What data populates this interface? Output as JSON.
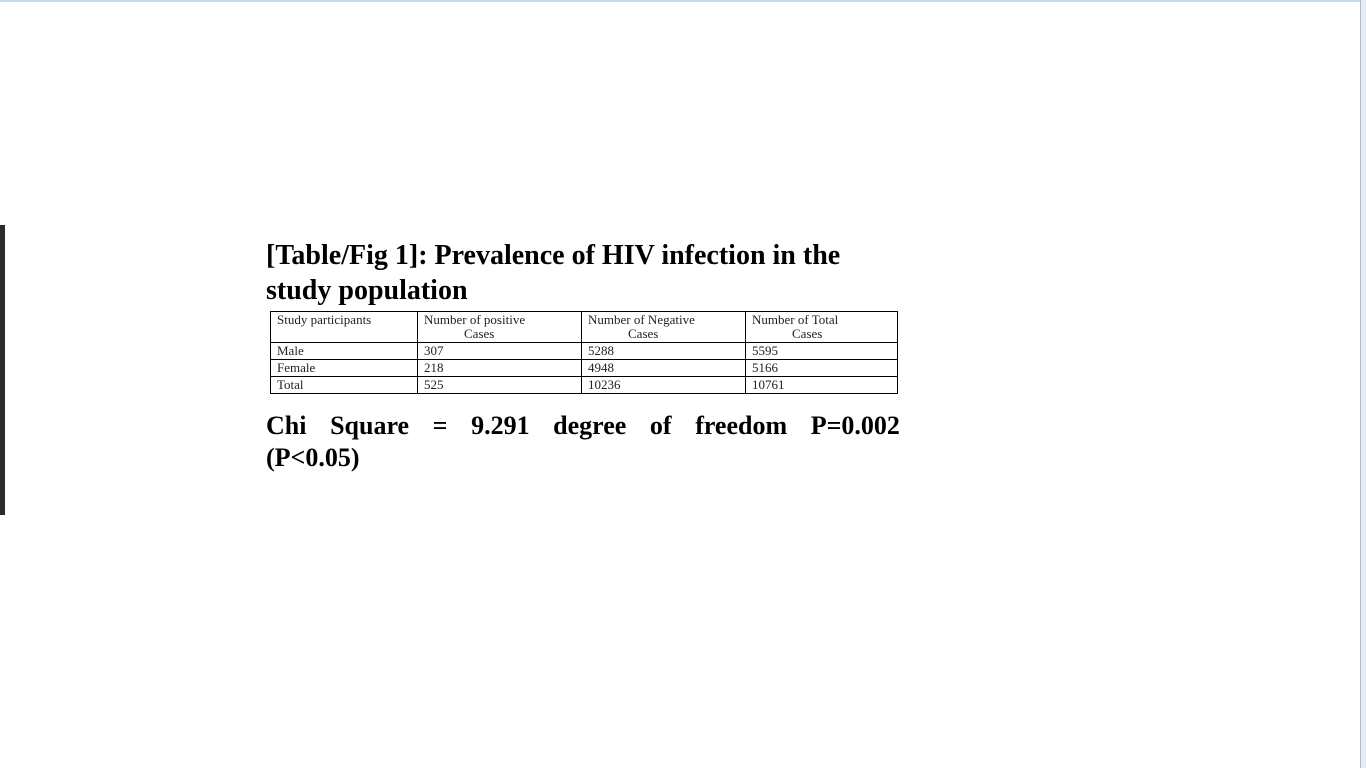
{
  "caption": "[Table/Fig 1]: Prevalence of HIV infection in the study population",
  "table": {
    "headers": [
      [
        "Study participants"
      ],
      [
        "Number of positive",
        "Cases"
      ],
      [
        "Number of Negative",
        "Cases"
      ],
      [
        "Number of Total",
        "Cases"
      ]
    ],
    "rows": [
      [
        "Male",
        "307",
        "5288",
        "5595"
      ],
      [
        "Female",
        "218",
        "4948",
        "5166"
      ],
      [
        "Total",
        "525",
        "10236",
        "10761"
      ]
    ]
  },
  "statistic": {
    "line1": [
      "Chi",
      "Square",
      "=",
      "9.291",
      "degree",
      "of",
      "freedom",
      "P=0.002"
    ],
    "line2": "(P<0.05)"
  }
}
